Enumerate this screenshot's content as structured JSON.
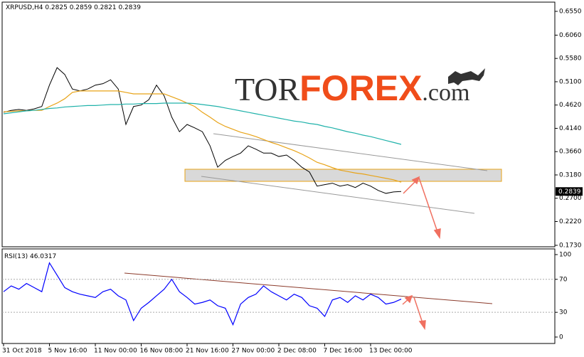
{
  "chart_data": [
    {
      "type": "line",
      "title": "XRPUSD,H4",
      "last_bar": {
        "open": 0.2825,
        "high": 0.2859,
        "low": 0.2821,
        "close": 0.2839
      },
      "logo": [
        "TOR",
        "FOREX",
        ".com"
      ],
      "ylim": [
        0.17,
        0.674
      ],
      "yticks": [
        {
          "value": 0.655,
          "label": "0.6550"
        },
        {
          "value": 0.606,
          "label": "0.6060"
        },
        {
          "value": 0.558,
          "label": "0.5580"
        },
        {
          "value": 0.51,
          "label": "0.5100"
        },
        {
          "value": 0.462,
          "label": "0.4620"
        },
        {
          "value": 0.414,
          "label": "0.4140"
        },
        {
          "value": 0.366,
          "label": "0.3660"
        },
        {
          "value": 0.318,
          "label": "0.3180"
        },
        {
          "value": 0.27,
          "label": "0.2700"
        },
        {
          "value": 0.222,
          "label": "0.2220"
        },
        {
          "value": 0.173,
          "label": "0.1730"
        }
      ],
      "series": [
        {
          "color": "#000000",
          "values": [
            0.447,
            0.451,
            0.453,
            0.451,
            0.454,
            0.459,
            0.503,
            0.539,
            0.525,
            0.495,
            0.491,
            0.495,
            0.503,
            0.506,
            0.514,
            0.495,
            0.422,
            0.459,
            0.462,
            0.473,
            0.503,
            0.481,
            0.437,
            0.407,
            0.422,
            0.415,
            0.407,
            0.378,
            0.334,
            0.348,
            0.356,
            0.363,
            0.378,
            0.371,
            0.363,
            0.363,
            0.356,
            0.359,
            0.348,
            0.334,
            0.324,
            0.295,
            0.298,
            0.301,
            0.295,
            0.298,
            0.292,
            0.301,
            0.295,
            0.286,
            0.28,
            0.283,
            0.2839
          ]
        },
        {
          "color": "#e8a317",
          "values": [
            0.448,
            0.449,
            0.45,
            0.45,
            0.451,
            0.451,
            0.459,
            0.466,
            0.475,
            0.488,
            0.491,
            0.491,
            0.491,
            0.491,
            0.491,
            0.491,
            0.488,
            0.485,
            0.485,
            0.485,
            0.485,
            0.485,
            0.479,
            0.473,
            0.466,
            0.459,
            0.447,
            0.437,
            0.426,
            0.418,
            0.412,
            0.406,
            0.402,
            0.397,
            0.391,
            0.385,
            0.38,
            0.374,
            0.368,
            0.361,
            0.353,
            0.344,
            0.339,
            0.333,
            0.328,
            0.325,
            0.322,
            0.32,
            0.317,
            0.314,
            0.311,
            0.308,
            0.303
          ]
        },
        {
          "color": "#20b2aa",
          "values": [
            0.444,
            0.446,
            0.448,
            0.45,
            0.451,
            0.453,
            0.455,
            0.456,
            0.458,
            0.459,
            0.46,
            0.461,
            0.461,
            0.462,
            0.463,
            0.463,
            0.464,
            0.464,
            0.465,
            0.465,
            0.465,
            0.466,
            0.466,
            0.466,
            0.466,
            0.465,
            0.463,
            0.461,
            0.459,
            0.456,
            0.453,
            0.45,
            0.447,
            0.444,
            0.441,
            0.438,
            0.435,
            0.432,
            0.429,
            0.427,
            0.424,
            0.422,
            0.418,
            0.415,
            0.411,
            0.407,
            0.404,
            0.4,
            0.397,
            0.393,
            0.389,
            0.385,
            0.381
          ]
        }
      ]
    },
    {
      "type": "line",
      "title": "RSI(13)",
      "categories": [
        "31 Oct 2018",
        null,
        null,
        null,
        null,
        null,
        "5 Nov 16:00",
        null,
        null,
        null,
        null,
        null,
        "11 Nov 00:00",
        null,
        null,
        null,
        null,
        null,
        "16 Nov 08:00",
        null,
        null,
        null,
        null,
        null,
        "21 Nov 16:00",
        null,
        null,
        null,
        null,
        null,
        "27 Nov 00:00",
        null,
        null,
        null,
        null,
        null,
        "2 Dec 08:00",
        null,
        null,
        null,
        null,
        null,
        "7 Dec 16:00",
        null,
        null,
        null,
        null,
        null,
        "13 Dec 00:00",
        null,
        null,
        null,
        null
      ],
      "ylim": [
        -7.8,
        106.9
      ],
      "yticks": [
        100,
        70,
        30,
        0
      ],
      "series": [
        {
          "color": "#0000ff",
          "values": [
            55,
            62,
            58,
            65,
            60,
            55,
            90,
            75,
            60,
            55,
            52,
            50,
            48,
            55,
            58,
            50,
            45,
            20,
            35,
            42,
            50,
            58,
            70,
            55,
            48,
            40,
            42,
            45,
            38,
            35,
            15,
            40,
            48,
            52,
            62,
            55,
            50,
            45,
            52,
            48,
            38,
            35,
            25,
            45,
            48,
            42,
            50,
            45,
            52,
            48,
            40,
            42,
            46.0317
          ]
        }
      ]
    }
  ]
}
